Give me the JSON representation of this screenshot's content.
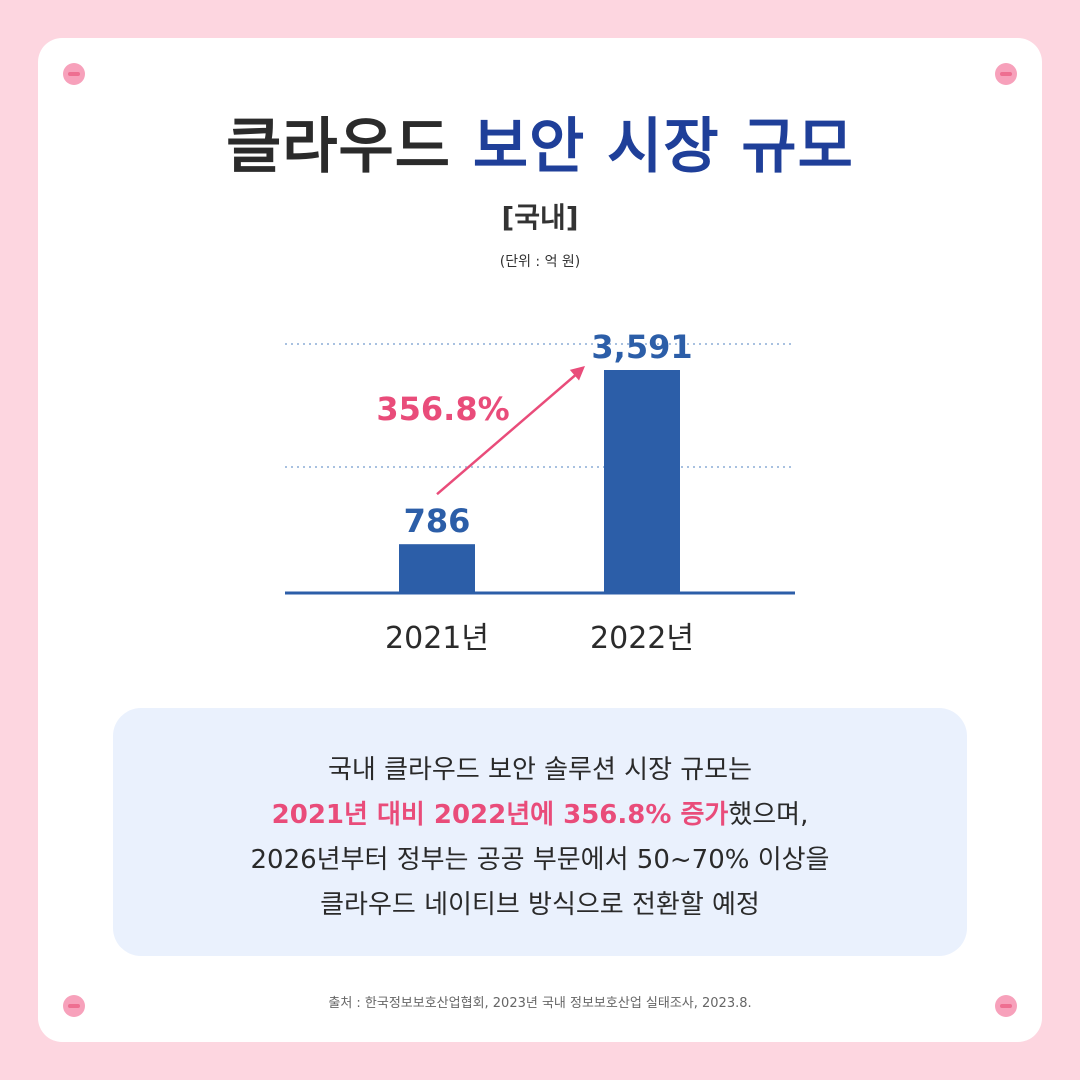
{
  "title": {
    "part1": "클라우드",
    "part2": "보안 시장 규모"
  },
  "subtitle": "[국내]",
  "unit": "(단위 : 억 원)",
  "chart_data": {
    "type": "bar",
    "categories": [
      "2021년",
      "2022년"
    ],
    "values": [
      786,
      3591
    ],
    "value_labels": [
      "786",
      "3,591"
    ],
    "growth_label": "356.8%",
    "ylim": [
      0,
      4000
    ],
    "grid": true,
    "bar_color": "#2c5ea8",
    "growth_color": "#e94c7a"
  },
  "info": {
    "line1": "국내 클라우드 보안 솔루션 시장 규모는",
    "line2_highlight": "2021년 대비 2022년에 356.8% 증가",
    "line2_rest": "했으며,",
    "line3": "2026년부터 정부는 공공 부문에서 50~70% 이상을",
    "line4": "클라우드 네이티브 방식으로 전환할 예정"
  },
  "source": "출처 : 한국정보보호산업협회, 2023년 국내 정보보호산업 실태조사, 2023.8.",
  "colors": {
    "background": "#fdd6e0",
    "accent_blue": "#1f3f99",
    "accent_pink": "#e94c7a",
    "info_box": "#eaf1fd"
  }
}
